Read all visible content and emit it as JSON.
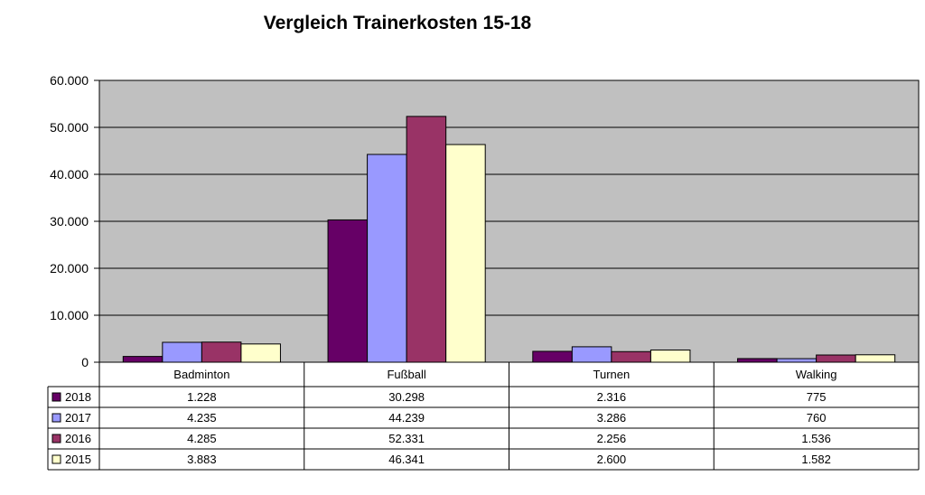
{
  "chart_data": {
    "type": "bar",
    "title": "Vergleich Trainerkosten 15-18",
    "categories": [
      "Badminton",
      "Fußball",
      "Turnen",
      "Walking"
    ],
    "series": [
      {
        "name": "2018",
        "color": "#660066",
        "values": [
          1228,
          30298,
          2316,
          775
        ],
        "labels": [
          "1.228",
          "30.298",
          "2.316",
          "775"
        ]
      },
      {
        "name": "2017",
        "color": "#9999ff",
        "values": [
          4235,
          44239,
          3286,
          760
        ],
        "labels": [
          "4.235",
          "44.239",
          "3.286",
          "760"
        ]
      },
      {
        "name": "2016",
        "color": "#993366",
        "values": [
          4285,
          52331,
          2256,
          1536
        ],
        "labels": [
          "4.285",
          "52.331",
          "2.256",
          "1.536"
        ]
      },
      {
        "name": "2015",
        "color": "#ffffcc",
        "values": [
          3883,
          46341,
          2600,
          1582
        ],
        "labels": [
          "3.883",
          "46.341",
          "2.600",
          "1.582"
        ]
      }
    ],
    "ylim": [
      0,
      60000
    ],
    "yticks": [
      0,
      10000,
      20000,
      30000,
      40000,
      50000,
      60000
    ],
    "ytick_labels": [
      "0",
      "10.000",
      "20.000",
      "30.000",
      "40.000",
      "50.000",
      "60.000"
    ],
    "xlabel": "",
    "ylabel": "",
    "grid": true,
    "plot_background": "#c0c0c0",
    "legend": "data-table-left"
  }
}
